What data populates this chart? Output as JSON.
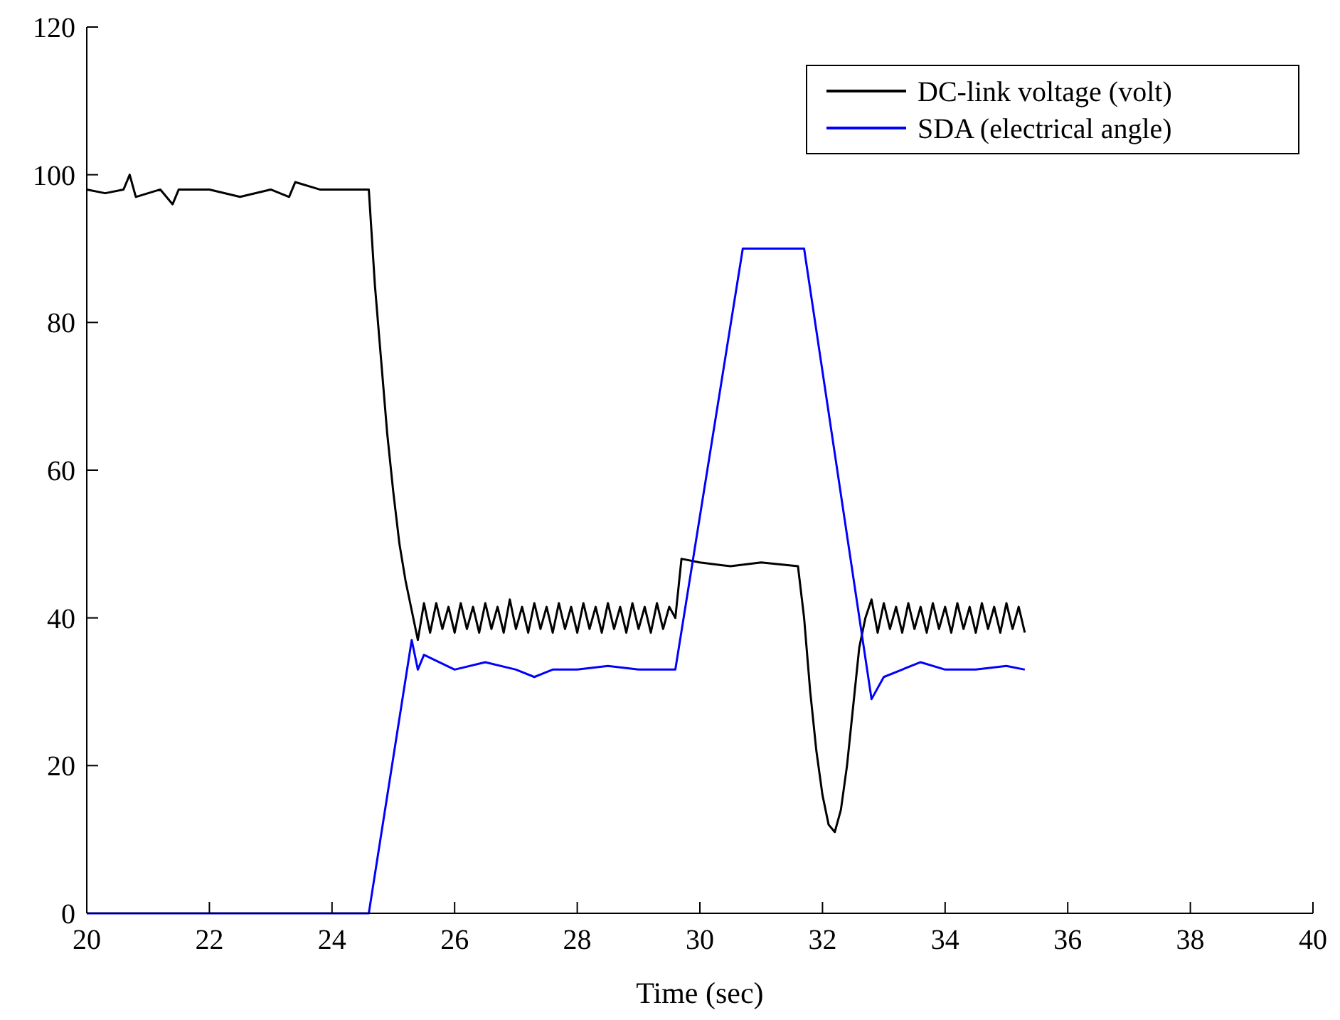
{
  "chart_data": {
    "type": "line",
    "xlabel": "Time (sec)",
    "xlim": [
      20,
      40
    ],
    "ylim": [
      0,
      120
    ],
    "xticks": [
      20,
      22,
      24,
      26,
      28,
      30,
      32,
      34,
      36,
      38,
      40
    ],
    "yticks": [
      0,
      20,
      40,
      60,
      80,
      100,
      120
    ],
    "legend": "top right",
    "grid": false,
    "line_style": "solid",
    "series": [
      {
        "name": "DC-link voltage (volt)",
        "color": "#000000",
        "x": [
          20,
          20.3,
          20.6,
          20.7,
          20.8,
          21.2,
          21.4,
          21.5,
          22,
          22.5,
          23,
          23.3,
          23.4,
          23.8,
          24.2,
          24.6,
          24.7,
          24.8,
          24.9,
          25,
          25.1,
          25.2,
          25.3,
          25.4,
          25.5,
          25.6,
          25.7,
          25.8,
          25.9,
          26,
          26.1,
          26.2,
          26.3,
          26.4,
          26.5,
          26.6,
          26.7,
          26.8,
          26.9,
          27,
          27.1,
          27.2,
          27.3,
          27.4,
          27.5,
          27.6,
          27.7,
          27.8,
          27.9,
          28,
          28.1,
          28.2,
          28.3,
          28.4,
          28.5,
          28.6,
          28.7,
          28.8,
          28.9,
          29,
          29.1,
          29.2,
          29.3,
          29.4,
          29.5,
          29.6,
          29.7,
          30,
          30.5,
          31,
          31.6,
          31.7,
          31.8,
          31.9,
          32,
          32.1,
          32.2,
          32.3,
          32.4,
          32.5,
          32.6,
          32.7,
          32.8,
          32.9,
          33,
          33.1,
          33.2,
          33.3,
          33.4,
          33.5,
          33.6,
          33.7,
          33.8,
          33.9,
          34,
          34.1,
          34.2,
          34.3,
          34.4,
          34.5,
          34.6,
          34.7,
          34.8,
          34.9,
          35,
          35.1,
          35.2,
          35.3
        ],
        "values": [
          98,
          97.5,
          98,
          100,
          97,
          98,
          96,
          98,
          98,
          97,
          98,
          97,
          99,
          98,
          98,
          98,
          85,
          75,
          65,
          57,
          50,
          45,
          41,
          37,
          42,
          38,
          42,
          38.5,
          41.5,
          38,
          42,
          38.5,
          41.5,
          38,
          42,
          38.5,
          41.5,
          38,
          42.5,
          38.5,
          41.5,
          38,
          42,
          38.5,
          41.5,
          38,
          42,
          38.5,
          41.5,
          38,
          42,
          38.5,
          41.5,
          38,
          42,
          38.5,
          41.5,
          38,
          42,
          38.5,
          41.5,
          38,
          42,
          38.5,
          41.5,
          40,
          48,
          47.5,
          47,
          47.5,
          47,
          40,
          30,
          22,
          16,
          12,
          11,
          14,
          20,
          28,
          36,
          40,
          42.5,
          38,
          42,
          38.5,
          41.5,
          38,
          42,
          38.5,
          41.5,
          38,
          42,
          38.5,
          41.5,
          38,
          42,
          38.5,
          41.5,
          38,
          42,
          38.5,
          41.5,
          38,
          42,
          38.5,
          41.5,
          38
        ]
      },
      {
        "name": "SDA (electrical angle)",
        "color": "#0000ff",
        "x": [
          20,
          24.6,
          25.3,
          25.4,
          25.5,
          26,
          26.5,
          27,
          27.3,
          27.6,
          28,
          28.5,
          29,
          29.6,
          30.7,
          31.7,
          32.8,
          33,
          33.3,
          33.6,
          34,
          34.5,
          35,
          35.3
        ],
        "values": [
          0,
          0,
          37,
          33,
          35,
          33,
          34,
          33,
          32,
          33,
          33,
          33.5,
          33,
          33,
          90,
          90,
          29,
          32,
          33,
          34,
          33,
          33,
          33.5,
          33
        ]
      }
    ]
  }
}
